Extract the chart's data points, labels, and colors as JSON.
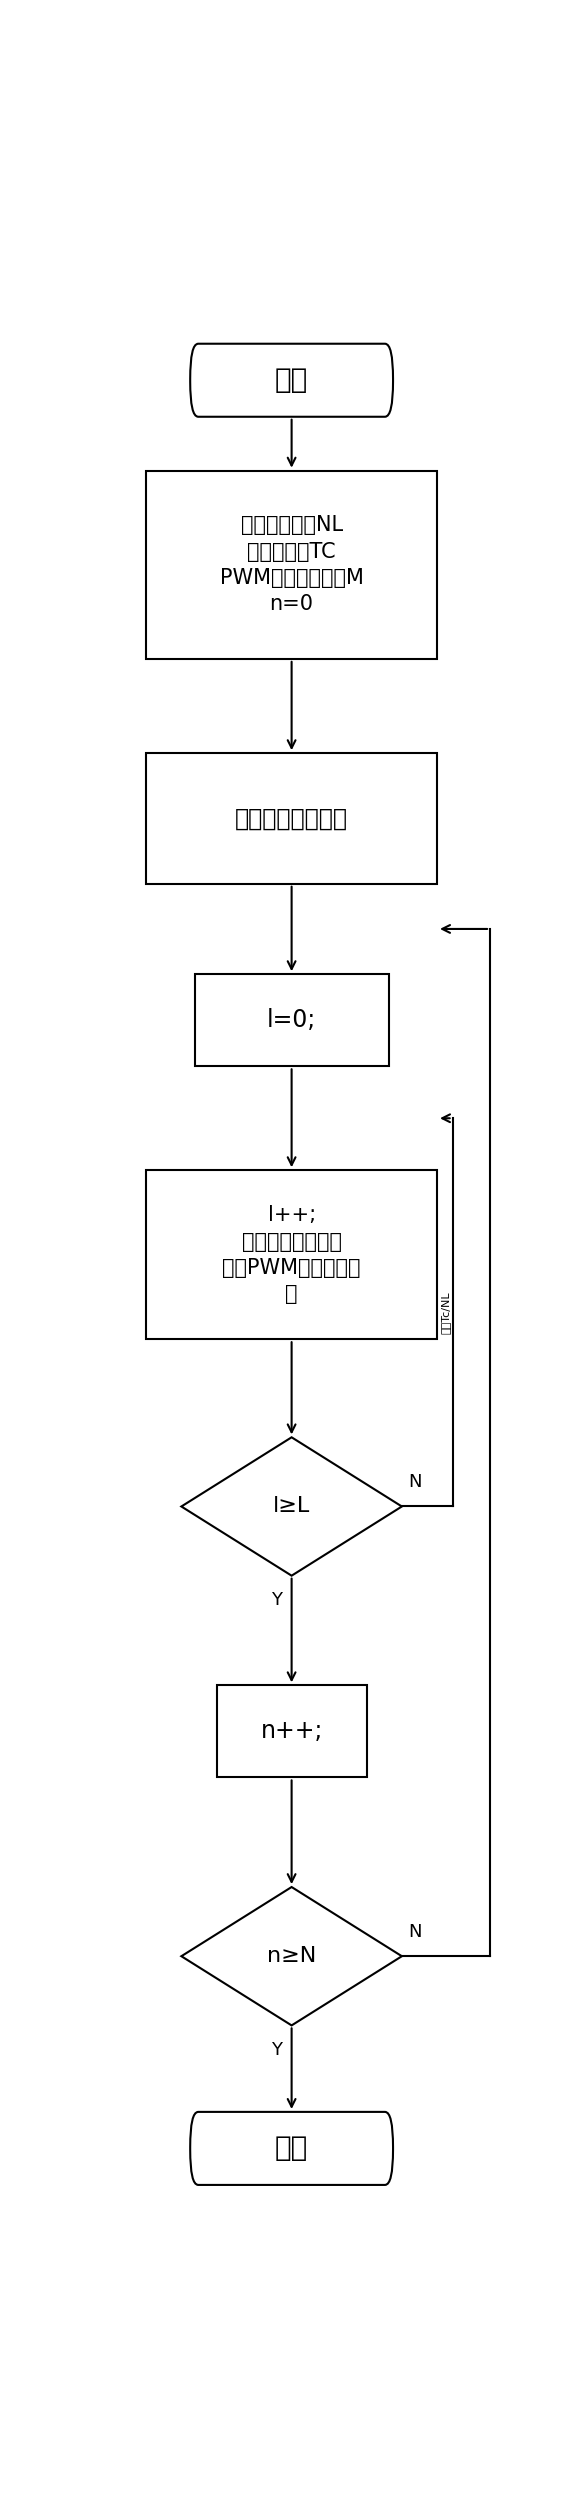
{
  "fig_width": 5.69,
  "fig_height": 24.96,
  "bg_color": "#ffffff",
  "line_color": "#000000",
  "text_color": "#000000",
  "start_text": "开始",
  "end_text": "结束",
  "init_text": "调光总等级数NL\n调光总时间TC\nPWM波产生寄存器M\nn=0",
  "calc_text": "计算调光等级时间",
  "l0_text": "l=0;",
  "lpp_text": "l++;\n计算比较寄存器值\n设置PWM波实际占空\n比",
  "lgeL_text": "l≥L",
  "npp_text": "n++;",
  "ngeN_text": "n≥N",
  "loop1_label": "延续Tc/NL",
  "N_label": "N",
  "Y_label": "Y"
}
